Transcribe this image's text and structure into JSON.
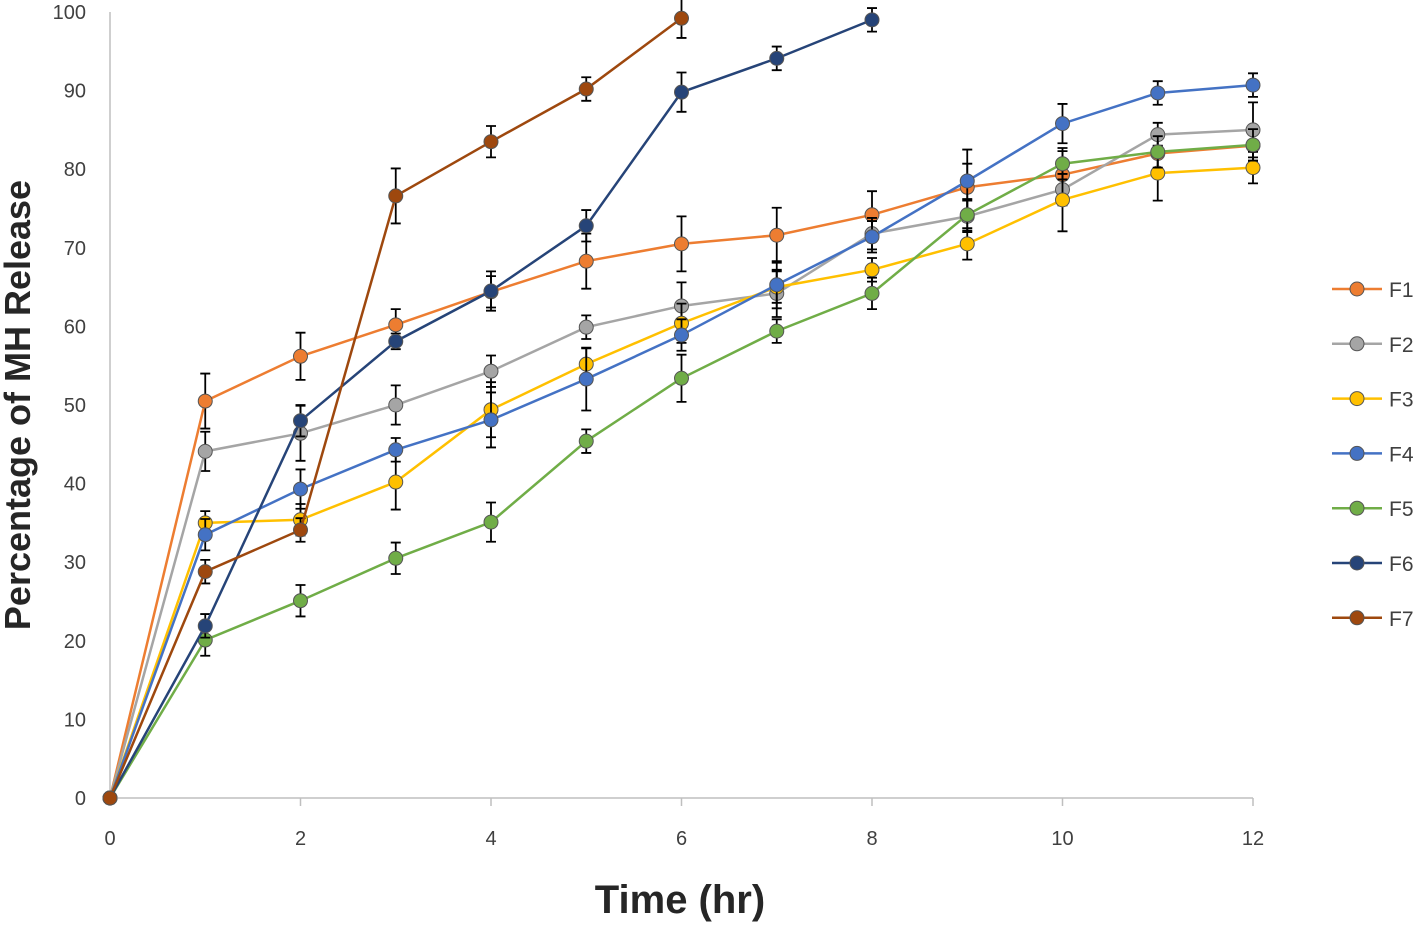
{
  "chart_data": {
    "type": "line",
    "title": "",
    "xlabel": "Time (hr)",
    "ylabel": "Percentage of MH Release",
    "xlim": [
      0,
      12
    ],
    "ylim": [
      0,
      100
    ],
    "xticks": [
      0,
      2,
      4,
      6,
      8,
      10,
      12
    ],
    "yticks": [
      0,
      10,
      20,
      30,
      40,
      50,
      60,
      70,
      80,
      90,
      100
    ],
    "grid": false,
    "legend_position": "right",
    "series": [
      {
        "name": "F1",
        "color": "#ED7D31",
        "x": [
          0,
          1,
          2,
          3,
          4,
          5,
          6,
          7,
          8,
          9,
          10,
          11,
          12
        ],
        "y": [
          0,
          50.5,
          56.2,
          60.2,
          64.4,
          68.3,
          70.5,
          71.6,
          74.2,
          77.7,
          79.3,
          82,
          83
        ],
        "err": [
          0,
          3.5,
          3,
          2,
          2,
          3.5,
          3.5,
          3.5,
          3,
          3,
          3,
          2,
          2
        ]
      },
      {
        "name": "F2",
        "color": "#A5A5A5",
        "x": [
          0,
          1,
          2,
          3,
          4,
          5,
          6,
          7,
          8,
          9,
          10,
          11,
          12
        ],
        "y": [
          0,
          44.1,
          46.4,
          50,
          54.3,
          59.9,
          62.6,
          64.2,
          71.8,
          74,
          77.4,
          84.4,
          85
        ],
        "err": [
          0,
          2.5,
          3.5,
          2.5,
          2,
          1.5,
          3,
          3,
          2,
          2,
          2,
          1.5,
          3.5
        ]
      },
      {
        "name": "F3",
        "color": "#FFC000",
        "x": [
          0,
          1,
          2,
          3,
          4,
          5,
          6,
          7,
          8,
          9,
          10,
          11,
          12
        ],
        "y": [
          0,
          35,
          35.4,
          40.2,
          49.4,
          55.2,
          60.4,
          65,
          67.2,
          70.5,
          76.1,
          79.5,
          80.2
        ],
        "err": [
          0,
          1.5,
          2,
          3.5,
          3.5,
          2,
          2.5,
          2,
          1.5,
          2,
          4,
          3.5,
          2
        ]
      },
      {
        "name": "F4",
        "color": "#4472C4",
        "x": [
          0,
          1,
          2,
          3,
          4,
          5,
          6,
          7,
          8,
          9,
          10,
          11,
          12
        ],
        "y": [
          0,
          33.5,
          39.3,
          44.3,
          48.1,
          53.3,
          58.9,
          65.3,
          71.4,
          78.5,
          85.8,
          89.7,
          90.7
        ],
        "err": [
          0,
          2,
          2.5,
          1.5,
          3.5,
          4,
          2,
          3,
          2,
          4,
          2.5,
          1.5,
          1.5
        ]
      },
      {
        "name": "F5",
        "color": "#70AD47",
        "x": [
          0,
          1,
          2,
          3,
          4,
          5,
          6,
          7,
          8,
          9,
          10,
          11,
          12
        ],
        "y": [
          0,
          20.1,
          25.1,
          30.5,
          35.1,
          45.4,
          53.4,
          59.4,
          64.2,
          74.2,
          80.7,
          82.2,
          83.1
        ],
        "err": [
          0,
          2,
          2,
          2,
          2.5,
          1.5,
          3,
          1.5,
          2,
          2,
          2,
          2,
          2
        ]
      },
      {
        "name": "F6",
        "color": "#264478",
        "x": [
          0,
          1,
          2,
          3,
          4,
          5,
          6,
          7,
          8
        ],
        "y": [
          0,
          21.9,
          48,
          58.1,
          64.5,
          72.8,
          89.8,
          94.1,
          99
        ],
        "err": [
          0,
          1.5,
          2,
          1,
          2.5,
          2,
          2.5,
          1.5,
          1.5
        ]
      },
      {
        "name": "F7",
        "color": "#9E480E",
        "x": [
          0,
          1,
          2,
          3,
          4,
          5,
          6
        ],
        "y": [
          0,
          28.8,
          34.1,
          76.6,
          83.5,
          90.2,
          99.2
        ],
        "err": [
          0,
          1.5,
          1.5,
          3.5,
          2,
          1.5,
          2.5
        ]
      }
    ]
  }
}
